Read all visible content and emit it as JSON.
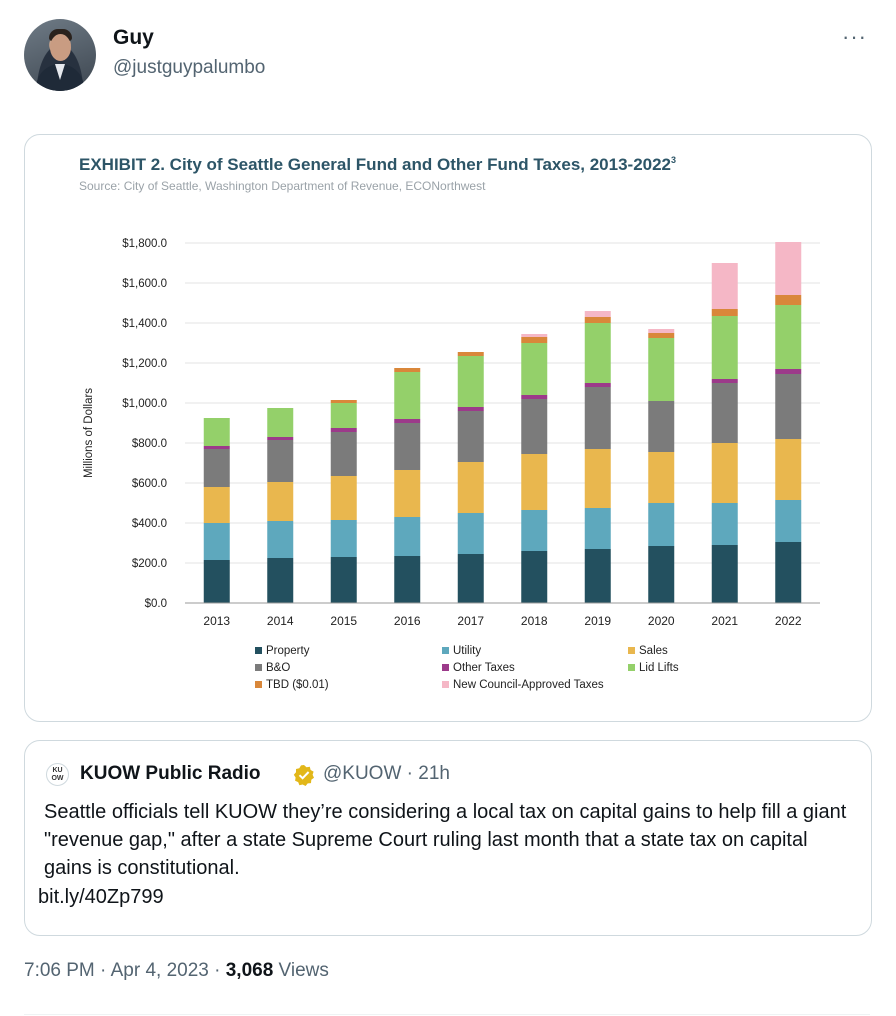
{
  "author": {
    "name": "Guy",
    "handle": "@justguypalumbo"
  },
  "more_label": "···",
  "chart_data": {
    "type": "bar",
    "stacked": true,
    "title": "EXHIBIT 2. City of Seattle General Fund and Other Fund Taxes, 2013-2022",
    "title_superscript": "3",
    "subtitle": "Source: City of Seattle, Washington Department of Revenue, ECONorthwest",
    "ylabel": "Millions of Dollars",
    "xlabel": "",
    "ylim": [
      0,
      1800
    ],
    "ytick_labels": [
      "$0.0",
      "$200.0",
      "$400.0",
      "$600.0",
      "$800.0",
      "$1,000.0",
      "$1,200.0",
      "$1,400.0",
      "$1,600.0",
      "$1,800.0"
    ],
    "categories": [
      "2013",
      "2014",
      "2015",
      "2016",
      "2017",
      "2018",
      "2019",
      "2020",
      "2021",
      "2022"
    ],
    "grid": true,
    "legend_position": "bottom",
    "series": [
      {
        "name": "Property",
        "color": "#23505f",
        "values": [
          215,
          225,
          230,
          235,
          245,
          260,
          270,
          285,
          290,
          305
        ]
      },
      {
        "name": "Utility",
        "color": "#5ea8bd",
        "values": [
          185,
          185,
          185,
          195,
          205,
          205,
          205,
          215,
          210,
          210
        ]
      },
      {
        "name": "Sales",
        "color": "#e9b74e",
        "values": [
          180,
          195,
          220,
          235,
          255,
          280,
          295,
          255,
          300,
          305
        ]
      },
      {
        "name": "B&O",
        "color": "#7b7b7b",
        "values": [
          190,
          210,
          220,
          235,
          255,
          275,
          310,
          255,
          300,
          325
        ]
      },
      {
        "name": "Other Taxes",
        "color": "#9c3a8a",
        "values": [
          15,
          15,
          20,
          20,
          20,
          20,
          20,
          0,
          20,
          25
        ]
      },
      {
        "name": "Lid Lifts",
        "color": "#94d06a",
        "values": [
          140,
          145,
          125,
          235,
          255,
          260,
          300,
          315,
          315,
          320
        ]
      },
      {
        "name": "TBD ($0.01)",
        "color": "#d9873a",
        "values": [
          0,
          0,
          15,
          20,
          20,
          30,
          30,
          25,
          35,
          50
        ]
      },
      {
        "name": "New Council-Approved Taxes",
        "color": "#f5b7c6",
        "values": [
          0,
          0,
          0,
          0,
          0,
          15,
          30,
          20,
          230,
          265
        ]
      }
    ]
  },
  "quote": {
    "logo_text": "KU OW",
    "name": "KUOW Public Radio",
    "handle_time": "@KUOW · 21h",
    "verified_icon": "gold-verified-badge-icon",
    "text": "Seattle officials tell KUOW they’re considering a local tax on capital gains to help fill a giant \"revenue gap,\" after a state Supreme Court ruling last month that a state tax on capital gains is constitutional.",
    "link": "bit.ly/40Zp799"
  },
  "meta": {
    "time_date": "7:06 PM · Apr 4, 2023 · ",
    "views_count": "3,068",
    "views_label": " Views"
  }
}
